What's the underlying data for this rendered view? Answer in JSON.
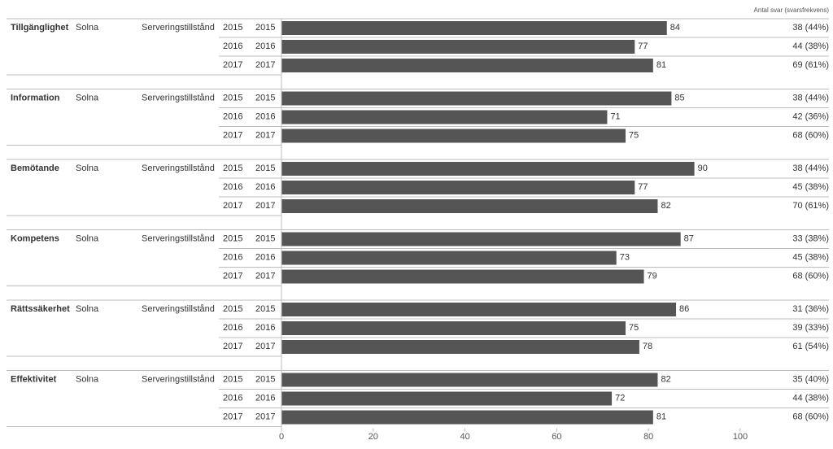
{
  "header": {
    "responses_label": "Antal svar (svarsfrekvens)"
  },
  "chart_data": {
    "type": "bar",
    "orientation": "horizontal",
    "title": "",
    "xlabel": "",
    "ylabel": "",
    "xlim": [
      0,
      100
    ],
    "x_ticks": [
      "0",
      "20",
      "40",
      "60",
      "80",
      "100"
    ],
    "grid": false,
    "bar_color": "#555555",
    "groups": [
      {
        "category": "Tillgänglighet",
        "municipality": "Solna",
        "area": "Serveringstillstånd",
        "rows": [
          {
            "year_a": "2015",
            "year_b": "2015",
            "value": 84,
            "responses": "38 (44%)"
          },
          {
            "year_a": "2016",
            "year_b": "2016",
            "value": 77,
            "responses": "44 (38%)"
          },
          {
            "year_a": "2017",
            "year_b": "2017",
            "value": 81,
            "responses": "69 (61%)"
          }
        ]
      },
      {
        "category": "Information",
        "municipality": "Solna",
        "area": "Serveringstillstånd",
        "rows": [
          {
            "year_a": "2015",
            "year_b": "2015",
            "value": 85,
            "responses": "38 (44%)"
          },
          {
            "year_a": "2016",
            "year_b": "2016",
            "value": 71,
            "responses": "42 (36%)"
          },
          {
            "year_a": "2017",
            "year_b": "2017",
            "value": 75,
            "responses": "68 (60%)"
          }
        ]
      },
      {
        "category": "Bemötande",
        "municipality": "Solna",
        "area": "Serveringstillstånd",
        "rows": [
          {
            "year_a": "2015",
            "year_b": "2015",
            "value": 90,
            "responses": "38 (44%)"
          },
          {
            "year_a": "2016",
            "year_b": "2016",
            "value": 77,
            "responses": "45 (38%)"
          },
          {
            "year_a": "2017",
            "year_b": "2017",
            "value": 82,
            "responses": "70 (61%)"
          }
        ]
      },
      {
        "category": "Kompetens",
        "municipality": "Solna",
        "area": "Serveringstillstånd",
        "rows": [
          {
            "year_a": "2015",
            "year_b": "2015",
            "value": 87,
            "responses": "33 (38%)"
          },
          {
            "year_a": "2016",
            "year_b": "2016",
            "value": 73,
            "responses": "45 (38%)"
          },
          {
            "year_a": "2017",
            "year_b": "2017",
            "value": 79,
            "responses": "68 (60%)"
          }
        ]
      },
      {
        "category": "Rättssäkerhet",
        "municipality": "Solna",
        "area": "Serveringstillstånd",
        "rows": [
          {
            "year_a": "2015",
            "year_b": "2015",
            "value": 86,
            "responses": "31 (36%)"
          },
          {
            "year_a": "2016",
            "year_b": "2016",
            "value": 75,
            "responses": "39 (33%)"
          },
          {
            "year_a": "2017",
            "year_b": "2017",
            "value": 78,
            "responses": "61 (54%)"
          }
        ]
      },
      {
        "category": "Effektivitet",
        "municipality": "Solna",
        "area": "Serveringstillstånd",
        "rows": [
          {
            "year_a": "2015",
            "year_b": "2015",
            "value": 82,
            "responses": "35 (40%)"
          },
          {
            "year_a": "2016",
            "year_b": "2016",
            "value": 72,
            "responses": "44 (38%)"
          },
          {
            "year_a": "2017",
            "year_b": "2017",
            "value": 81,
            "responses": "68 (60%)"
          }
        ]
      }
    ]
  }
}
